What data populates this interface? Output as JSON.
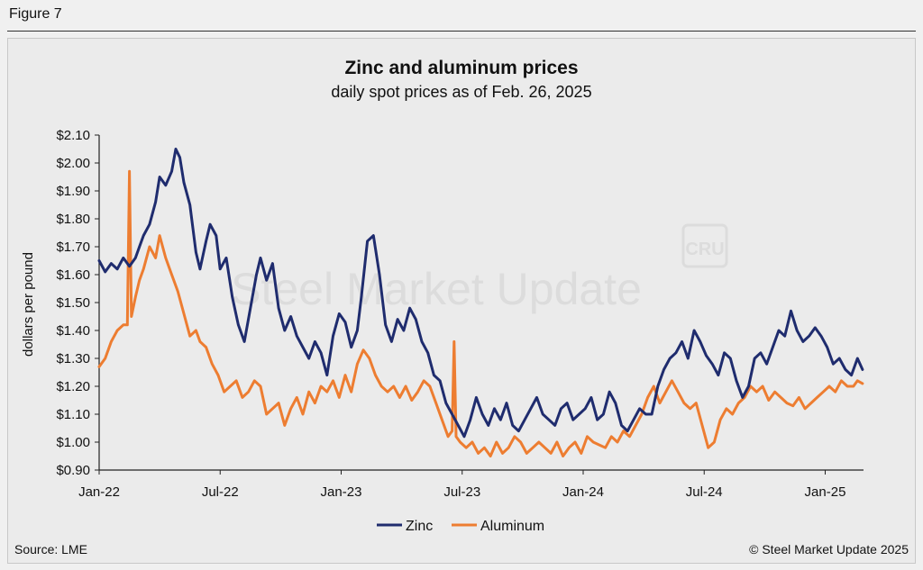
{
  "figure_label": "Figure 7",
  "watermark": {
    "text": "Steel Market Update",
    "logo": "CRU"
  },
  "footer": {
    "source": "Source: LME",
    "copyright": "© Steel Market Update 2025"
  },
  "colors": {
    "zinc": "#1f2c6e",
    "aluminum": "#ed7d31",
    "axis": "#222222",
    "watermark": "#dcdcdc"
  },
  "chart_data": {
    "type": "line",
    "title": "Zinc and aluminum prices",
    "subtitle": "daily spot prices as of Feb. 26, 2025",
    "xlabel": "",
    "ylabel": "dollars per pound",
    "ylim": [
      0.9,
      2.1
    ],
    "yticks": [
      0.9,
      1.0,
      1.1,
      1.2,
      1.3,
      1.4,
      1.5,
      1.6,
      1.7,
      1.8,
      1.9,
      2.0,
      2.1
    ],
    "ytick_labels": [
      "$0.90",
      "$1.00",
      "$1.10",
      "$1.20",
      "$1.30",
      "$1.40",
      "$1.50",
      "$1.60",
      "$1.70",
      "$1.80",
      "$1.90",
      "$2.00",
      "$2.10"
    ],
    "xlim": [
      0,
      37.9
    ],
    "x_unit": "months since Jan 2022",
    "xticks": [
      0,
      6,
      12,
      18,
      24,
      30,
      36
    ],
    "xtick_labels": [
      "Jan-22",
      "Jul-22",
      "Jan-23",
      "Jul-23",
      "Jan-24",
      "Jul-24",
      "Jan-25"
    ],
    "legend_position": "bottom-center",
    "series": [
      {
        "name": "Zinc",
        "x": [
          0,
          0.3,
          0.6,
          0.9,
          1.2,
          1.5,
          1.8,
          2.0,
          2.2,
          2.5,
          2.8,
          3.0,
          3.3,
          3.6,
          3.8,
          4.0,
          4.2,
          4.5,
          4.8,
          5.0,
          5.3,
          5.5,
          5.8,
          6.0,
          6.3,
          6.6,
          6.9,
          7.2,
          7.5,
          7.8,
          8.0,
          8.3,
          8.6,
          8.9,
          9.2,
          9.5,
          9.8,
          10.1,
          10.4,
          10.7,
          11.0,
          11.3,
          11.6,
          11.9,
          12.2,
          12.5,
          12.8,
          13.0,
          13.3,
          13.6,
          13.9,
          14.2,
          14.5,
          14.8,
          15.1,
          15.4,
          15.7,
          16.0,
          16.3,
          16.6,
          16.9,
          17.2,
          17.5,
          17.8,
          18.1,
          18.4,
          18.7,
          19.0,
          19.3,
          19.6,
          19.9,
          20.2,
          20.5,
          20.8,
          21.1,
          21.4,
          21.7,
          22.0,
          22.3,
          22.6,
          22.9,
          23.2,
          23.5,
          23.8,
          24.1,
          24.4,
          24.7,
          25.0,
          25.3,
          25.6,
          25.9,
          26.2,
          26.5,
          26.8,
          27.1,
          27.4,
          27.7,
          28.0,
          28.3,
          28.6,
          28.9,
          29.2,
          29.5,
          29.8,
          30.1,
          30.4,
          30.7,
          31.0,
          31.3,
          31.6,
          31.9,
          32.2,
          32.5,
          32.8,
          33.1,
          33.4,
          33.7,
          34.0,
          34.3,
          34.6,
          34.9,
          35.2,
          35.5,
          35.8,
          36.1,
          36.4,
          36.7,
          37.0,
          37.3,
          37.6,
          37.85
        ],
        "values": [
          1.65,
          1.61,
          1.64,
          1.62,
          1.66,
          1.63,
          1.66,
          1.7,
          1.74,
          1.78,
          1.86,
          1.95,
          1.92,
          1.97,
          2.05,
          2.02,
          1.93,
          1.85,
          1.68,
          1.62,
          1.72,
          1.78,
          1.74,
          1.62,
          1.66,
          1.52,
          1.42,
          1.36,
          1.48,
          1.6,
          1.66,
          1.58,
          1.64,
          1.48,
          1.4,
          1.45,
          1.38,
          1.34,
          1.3,
          1.36,
          1.32,
          1.24,
          1.38,
          1.46,
          1.43,
          1.34,
          1.4,
          1.52,
          1.72,
          1.74,
          1.6,
          1.42,
          1.36,
          1.44,
          1.4,
          1.48,
          1.44,
          1.36,
          1.32,
          1.24,
          1.22,
          1.14,
          1.1,
          1.06,
          1.02,
          1.08,
          1.16,
          1.1,
          1.06,
          1.12,
          1.08,
          1.14,
          1.06,
          1.04,
          1.08,
          1.12,
          1.16,
          1.1,
          1.08,
          1.06,
          1.12,
          1.14,
          1.08,
          1.1,
          1.12,
          1.16,
          1.08,
          1.1,
          1.18,
          1.14,
          1.06,
          1.04,
          1.08,
          1.12,
          1.1,
          1.1,
          1.2,
          1.26,
          1.3,
          1.32,
          1.36,
          1.3,
          1.4,
          1.36,
          1.31,
          1.28,
          1.24,
          1.32,
          1.3,
          1.22,
          1.16,
          1.2,
          1.3,
          1.32,
          1.28,
          1.34,
          1.4,
          1.38,
          1.47,
          1.4,
          1.36,
          1.38,
          1.41,
          1.38,
          1.34,
          1.28,
          1.3,
          1.26,
          1.24,
          1.3,
          1.26
        ],
        "color": "#1f2c6e"
      },
      {
        "name": "Aluminum",
        "x": [
          0,
          0.3,
          0.6,
          0.9,
          1.2,
          1.4,
          1.5,
          1.6,
          1.8,
          2.0,
          2.2,
          2.5,
          2.8,
          3.0,
          3.3,
          3.6,
          3.9,
          4.2,
          4.5,
          4.8,
          5.0,
          5.3,
          5.6,
          5.9,
          6.2,
          6.5,
          6.8,
          7.1,
          7.4,
          7.7,
          8.0,
          8.3,
          8.6,
          8.9,
          9.2,
          9.5,
          9.8,
          10.1,
          10.4,
          10.7,
          11.0,
          11.3,
          11.6,
          11.9,
          12.2,
          12.5,
          12.8,
          13.1,
          13.4,
          13.7,
          14.0,
          14.3,
          14.6,
          14.9,
          15.2,
          15.5,
          15.8,
          16.1,
          16.4,
          16.7,
          17.0,
          17.3,
          17.5,
          17.6,
          17.7,
          17.9,
          18.2,
          18.5,
          18.8,
          19.1,
          19.4,
          19.7,
          20.0,
          20.3,
          20.6,
          20.9,
          21.2,
          21.5,
          21.8,
          22.1,
          22.4,
          22.7,
          23.0,
          23.3,
          23.6,
          23.9,
          24.2,
          24.5,
          24.8,
          25.1,
          25.4,
          25.7,
          26.0,
          26.3,
          26.6,
          26.9,
          27.2,
          27.5,
          27.8,
          28.1,
          28.4,
          28.7,
          29.0,
          29.3,
          29.6,
          29.9,
          30.2,
          30.5,
          30.8,
          31.1,
          31.4,
          31.7,
          32.0,
          32.3,
          32.6,
          32.9,
          33.2,
          33.5,
          33.8,
          34.1,
          34.4,
          34.7,
          35.0,
          35.3,
          35.6,
          35.9,
          36.2,
          36.5,
          36.8,
          37.1,
          37.4,
          37.6,
          37.85
        ],
        "values": [
          1.27,
          1.3,
          1.36,
          1.4,
          1.42,
          1.42,
          1.97,
          1.45,
          1.52,
          1.58,
          1.62,
          1.7,
          1.66,
          1.74,
          1.66,
          1.6,
          1.54,
          1.46,
          1.38,
          1.4,
          1.36,
          1.34,
          1.28,
          1.24,
          1.18,
          1.2,
          1.22,
          1.16,
          1.18,
          1.22,
          1.2,
          1.1,
          1.12,
          1.14,
          1.06,
          1.12,
          1.16,
          1.1,
          1.18,
          1.14,
          1.2,
          1.18,
          1.22,
          1.16,
          1.24,
          1.18,
          1.28,
          1.33,
          1.3,
          1.24,
          1.2,
          1.18,
          1.2,
          1.16,
          1.2,
          1.15,
          1.18,
          1.22,
          1.2,
          1.14,
          1.08,
          1.02,
          1.04,
          1.36,
          1.02,
          1.0,
          0.98,
          1.0,
          0.96,
          0.98,
          0.95,
          1.0,
          0.96,
          0.98,
          1.02,
          1.0,
          0.96,
          0.98,
          1.0,
          0.98,
          0.96,
          1.0,
          0.95,
          0.98,
          1.0,
          0.96,
          1.02,
          1.0,
          0.99,
          0.98,
          1.02,
          1.0,
          1.04,
          1.02,
          1.06,
          1.1,
          1.16,
          1.2,
          1.14,
          1.18,
          1.22,
          1.18,
          1.14,
          1.12,
          1.14,
          1.06,
          0.98,
          1.0,
          1.08,
          1.12,
          1.1,
          1.14,
          1.16,
          1.2,
          1.18,
          1.2,
          1.15,
          1.18,
          1.16,
          1.14,
          1.13,
          1.16,
          1.12,
          1.14,
          1.16,
          1.18,
          1.2,
          1.18,
          1.22,
          1.2,
          1.2,
          1.22,
          1.21
        ],
        "color": "#ed7d31"
      }
    ]
  }
}
